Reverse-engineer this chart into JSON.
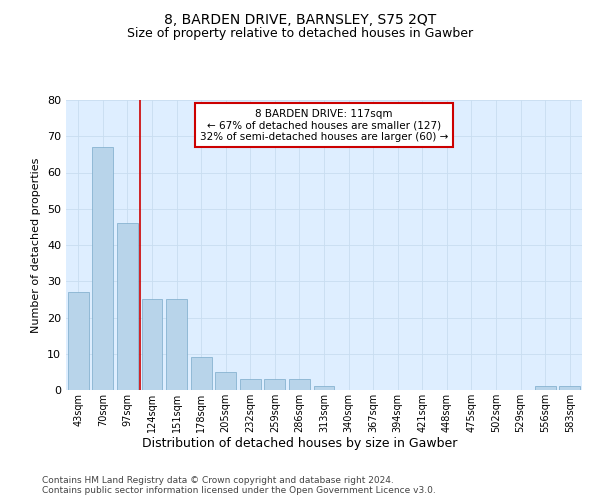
{
  "title": "8, BARDEN DRIVE, BARNSLEY, S75 2QT",
  "subtitle": "Size of property relative to detached houses in Gawber",
  "xlabel": "Distribution of detached houses by size in Gawber",
  "ylabel": "Number of detached properties",
  "bins": [
    "43sqm",
    "70sqm",
    "97sqm",
    "124sqm",
    "151sqm",
    "178sqm",
    "205sqm",
    "232sqm",
    "259sqm",
    "286sqm",
    "313sqm",
    "340sqm",
    "367sqm",
    "394sqm",
    "421sqm",
    "448sqm",
    "475sqm",
    "502sqm",
    "529sqm",
    "556sqm",
    "583sqm"
  ],
  "counts": [
    27,
    67,
    46,
    25,
    25,
    9,
    5,
    3,
    3,
    3,
    1,
    0,
    0,
    0,
    0,
    0,
    0,
    0,
    0,
    1,
    1
  ],
  "bar_color": "#b8d4ea",
  "bar_edge_color": "#7aaaca",
  "vline_color": "#cc0000",
  "annotation_text": "8 BARDEN DRIVE: 117sqm\n← 67% of detached houses are smaller (127)\n32% of semi-detached houses are larger (60) →",
  "annotation_box_color": "#ffffff",
  "annotation_box_edge": "#cc0000",
  "ylim": [
    0,
    80
  ],
  "yticks": [
    0,
    10,
    20,
    30,
    40,
    50,
    60,
    70,
    80
  ],
  "grid_color": "#c8ddf0",
  "bg_color": "#deeeff",
  "footer": "Contains HM Land Registry data © Crown copyright and database right 2024.\nContains public sector information licensed under the Open Government Licence v3.0.",
  "title_fontsize": 10,
  "subtitle_fontsize": 9,
  "footer_fontsize": 6.5,
  "xlabel_fontsize": 9,
  "ylabel_fontsize": 8,
  "ytick_fontsize": 8,
  "xtick_fontsize": 7
}
